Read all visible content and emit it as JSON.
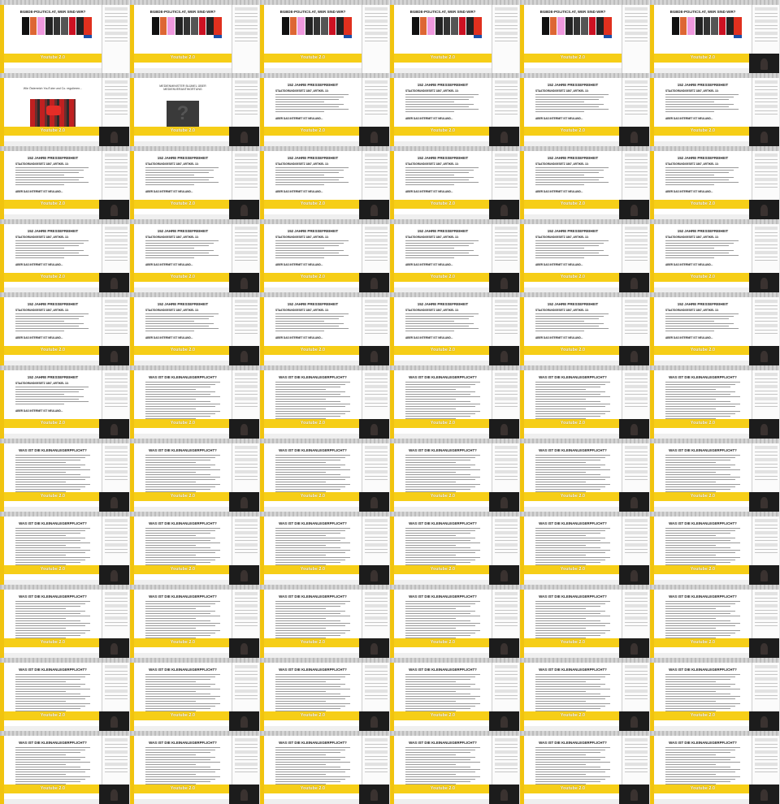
{
  "sheet": {
    "columns": 6,
    "rows": 11,
    "frames": [
      "intro",
      "intro",
      "intro",
      "intro",
      "intro",
      "intro-cam",
      "youtube",
      "question",
      "presse-cam",
      "presse-cam",
      "presse-cam",
      "presse-cam",
      "presse-cam",
      "presse-cam",
      "presse-cam",
      "presse-cam",
      "presse-cam",
      "presse-cam",
      "presse-cam",
      "presse-cam",
      "presse-cam",
      "presse-cam",
      "presse-cam",
      "presse-cam",
      "presse-cam",
      "presse-cam",
      "presse-cam",
      "presse-cam",
      "presse-cam",
      "presse-cam",
      "presse-cam",
      "klein",
      "klein",
      "klein",
      "klein",
      "klein",
      "klein",
      "klein",
      "klein",
      "klein",
      "klein",
      "klein",
      "klein",
      "klein",
      "klein",
      "klein",
      "klein",
      "klein",
      "klein",
      "klein",
      "klein",
      "klein",
      "klein",
      "klein",
      "klein",
      "klein",
      "klein",
      "klein",
      "klein",
      "klein",
      "klein",
      "klein",
      "klein",
      "klein",
      "klein",
      "klein"
    ]
  },
  "slides": {
    "intro": {
      "title": "BGBDE-POLITICS.AT, WER SIND WIR?"
    },
    "youtube": {
      "title": "Wie Österreich YouTube und Co. regulieren..."
    },
    "question": {
      "title": "MEDIENMINISTER BLÜMEL ÜBER MEDIENVERANTWORTUNG",
      "mark": "?"
    },
    "presse": {
      "title": "152 JAHRE PRESSEFREIHEIT",
      "bullet1": "STAATSGRUNDGESETZ 1867, ARTIKEL 13:",
      "bullet2": "ABER DAS INTERNET IST NEULAND..."
    },
    "klein": {
      "title": "WAS IST DIE KLEINANLEGERPFLICHT?"
    }
  },
  "banner": {
    "text": "Youtube 2.0"
  },
  "colors": {
    "accent": "#f6ce17",
    "webcam": "#1c1c1c",
    "panel": "#fbfbfb"
  }
}
